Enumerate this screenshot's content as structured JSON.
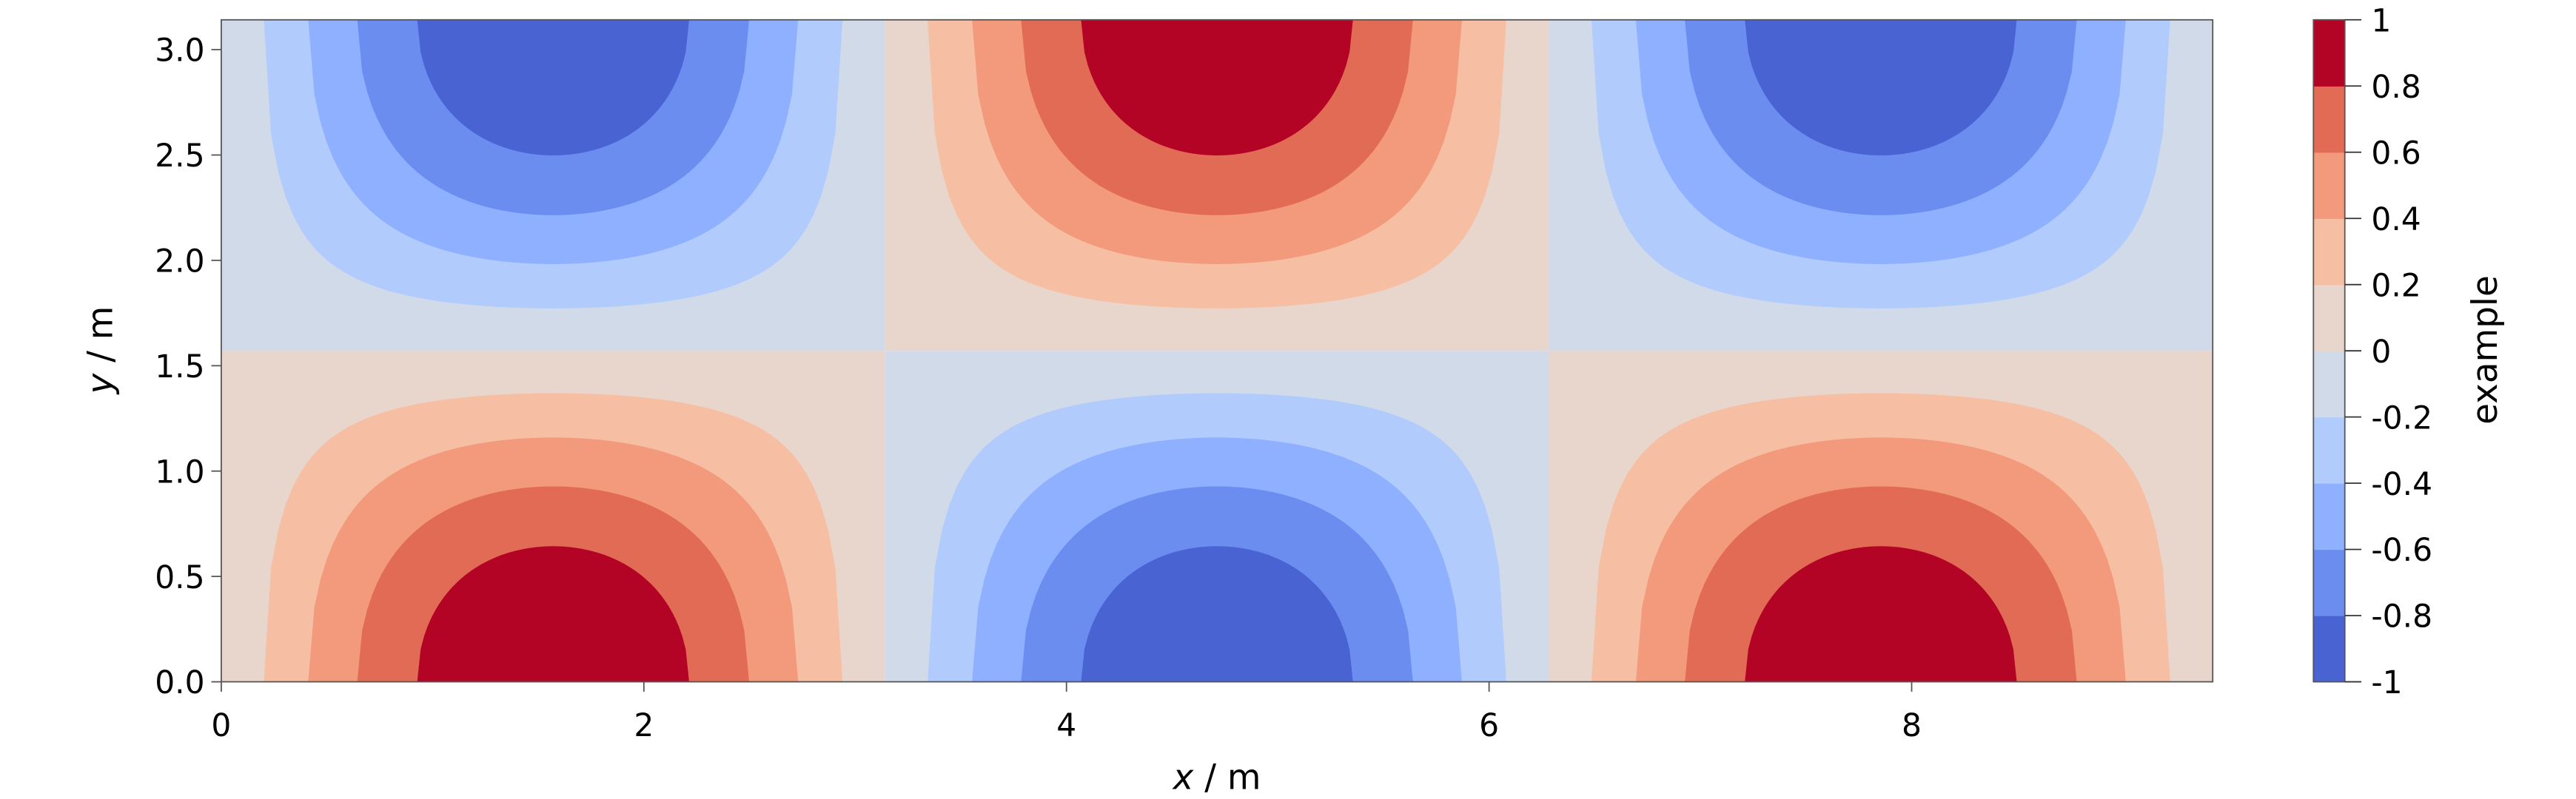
{
  "chart_data": {
    "type": "contour",
    "xlabel_var": "x",
    "xlabel_unit": " / m",
    "ylabel_var": "y",
    "ylabel_unit": " / m",
    "xlim": [
      0,
      9.42
    ],
    "ylim": [
      0,
      3.14
    ],
    "x_ticks": [
      "0",
      "2",
      "4",
      "6",
      "8"
    ],
    "x_tick_values": [
      0,
      2,
      4,
      6,
      8
    ],
    "y_ticks": [
      "0.0",
      "0.5",
      "1.0",
      "1.5",
      "2.0",
      "2.5",
      "3.0"
    ],
    "y_tick_values": [
      0,
      0.5,
      1.0,
      1.5,
      2.0,
      2.5,
      3.0
    ],
    "levels": [
      -1,
      -0.8,
      -0.6,
      -0.4,
      -0.2,
      0,
      0.2,
      0.4,
      0.6,
      0.8,
      1
    ],
    "level_colors": [
      "#4a63d3",
      "#6b8def",
      "#8eb0fe",
      "#b1cbfc",
      "#d0dae9",
      "#e8d6cd",
      "#f6bea3",
      "#f29a7b",
      "#e26b55",
      "#b40426"
    ],
    "colorbar": {
      "label": "example",
      "tick_labels": [
        "1",
        "0.8",
        "0.6",
        "0.4",
        "0.2",
        "0",
        "-0.2",
        "-0.4",
        "-0.6",
        "-0.8",
        "-1"
      ]
    },
    "grid": false,
    "colormap": "coolwarm"
  }
}
